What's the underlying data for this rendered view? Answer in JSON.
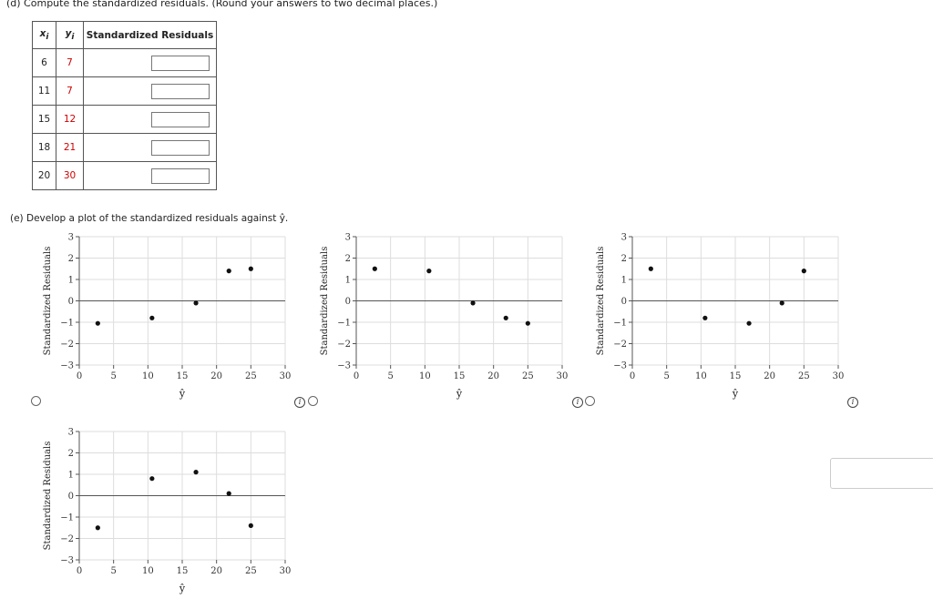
{
  "part_d": {
    "prompt": "(d)   Compute the standardized residuals. (Round your answers to two decimal places.)"
  },
  "table": {
    "headers": {
      "x": "x",
      "x_sub": "i",
      "y": "y",
      "y_sub": "i",
      "resid": "Standardized Residuals"
    },
    "rows": [
      {
        "x": "6",
        "y": "7"
      },
      {
        "x": "11",
        "y": "7"
      },
      {
        "x": "15",
        "y": "12"
      },
      {
        "x": "18",
        "y": "21"
      },
      {
        "x": "20",
        "y": "30"
      }
    ]
  },
  "part_e": {
    "prompt": "(e)   Develop a plot of the standardized residuals against ŷ."
  },
  "colors": {
    "value_red": "#cc0000",
    "point": "#111111",
    "grid": "#dddddd"
  },
  "plots": [
    {
      "chart_data": {
        "type": "scatter",
        "xlabel": "ŷ",
        "ylabel": "Standardized Residuals",
        "xlim": [
          0,
          30
        ],
        "ylim": [
          -3,
          3
        ],
        "xticks": [
          "0",
          "5",
          "10",
          "15",
          "20",
          "25",
          "30"
        ],
        "yticks": [
          "3",
          "2",
          "1",
          "0",
          "−1",
          "−2",
          "−3"
        ],
        "points": [
          [
            2.7,
            -1.05
          ],
          [
            10.6,
            -0.8
          ],
          [
            17,
            -0.1
          ],
          [
            21.8,
            1.4
          ],
          [
            25,
            1.5
          ]
        ]
      }
    },
    {
      "chart_data": {
        "type": "scatter",
        "xlabel": "ŷ",
        "ylabel": "Standardized Residuals",
        "xlim": [
          0,
          30
        ],
        "ylim": [
          -3,
          3
        ],
        "xticks": [
          "0",
          "5",
          "10",
          "15",
          "20",
          "25",
          "30"
        ],
        "yticks": [
          "3",
          "2",
          "1",
          "0",
          "−1",
          "−2",
          "−3"
        ],
        "points": [
          [
            2.7,
            1.5
          ],
          [
            10.6,
            1.4
          ],
          [
            17,
            -0.1
          ],
          [
            21.8,
            -0.8
          ],
          [
            25,
            -1.05
          ]
        ]
      }
    },
    {
      "chart_data": {
        "type": "scatter",
        "xlabel": "ŷ",
        "ylabel": "Standardized Residuals",
        "xlim": [
          0,
          30
        ],
        "ylim": [
          -3,
          3
        ],
        "xticks": [
          "0",
          "5",
          "10",
          "15",
          "20",
          "25",
          "30"
        ],
        "yticks": [
          "3",
          "2",
          "1",
          "0",
          "−1",
          "−2",
          "−3"
        ],
        "points": [
          [
            2.7,
            1.5
          ],
          [
            10.6,
            -0.8
          ],
          [
            17,
            -1.05
          ],
          [
            21.8,
            -0.1
          ],
          [
            25,
            1.4
          ]
        ]
      }
    },
    {
      "chart_data": {
        "type": "scatter",
        "xlabel": "ŷ",
        "ylabel": "Standardized Residuals",
        "xlim": [
          0,
          30
        ],
        "ylim": [
          -3,
          3
        ],
        "xticks": [
          "0",
          "5",
          "10",
          "15",
          "20",
          "25",
          "30"
        ],
        "yticks": [
          "3",
          "2",
          "1",
          "0",
          "−1",
          "−2",
          "−3"
        ],
        "points": [
          [
            2.7,
            -1.5
          ],
          [
            10.6,
            0.8
          ],
          [
            17,
            1.1
          ],
          [
            21.8,
            0.1
          ],
          [
            25,
            -1.4
          ]
        ]
      }
    }
  ]
}
